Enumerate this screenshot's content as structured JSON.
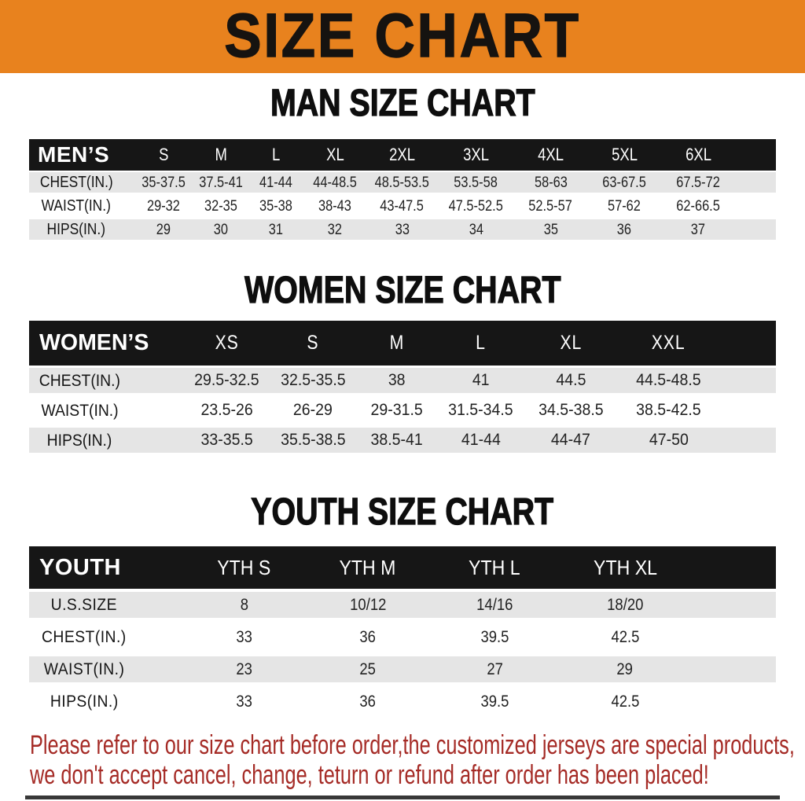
{
  "banner": {
    "title": "SIZE CHART",
    "bg_color": "#E8821E",
    "text_color": "#161310"
  },
  "sections": [
    {
      "heading": "MAN SIZE CHART",
      "table": {
        "label": "MEN’S",
        "columns": [
          "S",
          "M",
          "L",
          "XL",
          "2XL",
          "3XL",
          "4XL",
          "5XL",
          "6XL"
        ],
        "rows": [
          {
            "label": "CHEST(IN.)",
            "values": [
              "35-37.5",
              "37.5-41",
              "41-44",
              "44-48.5",
              "48.5-53.5",
              "53.5-58",
              "58-63",
              "63-67.5",
              "67.5-72"
            ]
          },
          {
            "label": "WAIST(IN.)",
            "values": [
              "29-32",
              "32-35",
              "35-38",
              "38-43",
              "43-47.5",
              "47.5-52.5",
              "52.5-57",
              "57-62",
              "62-66.5"
            ]
          },
          {
            "label": "HIPS(IN.)",
            "values": [
              "29",
              "30",
              "31",
              "32",
              "33",
              "34",
              "35",
              "36",
              "37"
            ]
          }
        ]
      }
    },
    {
      "heading": "WOMEN SIZE CHART",
      "table": {
        "label": "WOMEN’S",
        "columns": [
          "XS",
          "S",
          "M",
          "L",
          "XL",
          "XXL"
        ],
        "rows": [
          {
            "label": "CHEST(IN.)",
            "values": [
              "29.5-32.5",
              "32.5-35.5",
              "38",
              "41",
              "44.5",
              "44.5-48.5"
            ]
          },
          {
            "label": "WAIST(IN.)",
            "values": [
              "23.5-26",
              "26-29",
              "29-31.5",
              "31.5-34.5",
              "34.5-38.5",
              "38.5-42.5"
            ]
          },
          {
            "label": "HIPS(IN.)",
            "values": [
              "33-35.5",
              "35.5-38.5",
              "38.5-41",
              "41-44",
              "44-47",
              "47-50"
            ]
          }
        ]
      }
    },
    {
      "heading": "YOUTH SIZE CHART",
      "table": {
        "label": "YOUTH",
        "columns": [
          "YTH S",
          "YTH M",
          "YTH L",
          "YTH XL"
        ],
        "rows": [
          {
            "label": "U.S.SIZE",
            "values": [
              "8",
              "10/12",
              "14/16",
              "18/20"
            ]
          },
          {
            "label": "CHEST(IN.)",
            "values": [
              "33",
              "36",
              "39.5",
              "42.5"
            ]
          },
          {
            "label": "WAIST(IN.)",
            "values": [
              "23",
              "25",
              "27",
              "29"
            ]
          },
          {
            "label": "HIPS(IN.)",
            "values": [
              "33",
              "36",
              "39.5",
              "42.5"
            ]
          }
        ]
      }
    }
  ],
  "footer": {
    "line1": "Please refer to our size chart before order,the customized jerseys are special products,",
    "line2": "we don't accept cancel, change, teturn or refund after order has been placed!",
    "text_color": "#A52B26"
  },
  "colors": {
    "header_bar": "#161616",
    "stripe_row": "#E5E5E5",
    "bottom_bar": "#383838"
  }
}
